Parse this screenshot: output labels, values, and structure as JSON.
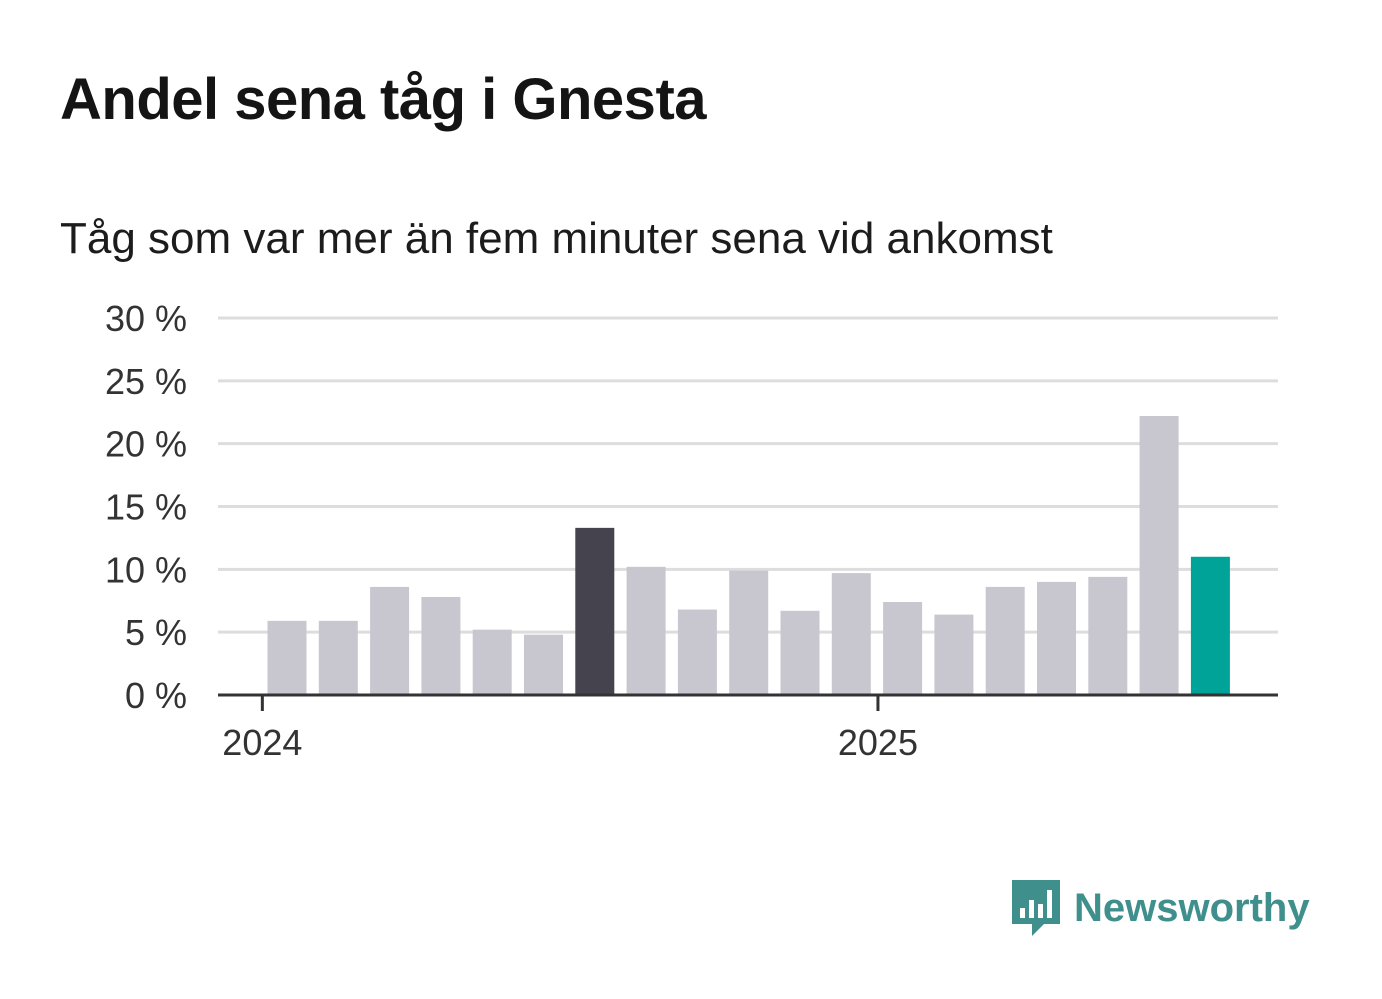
{
  "chart_data": {
    "type": "bar",
    "title": "Andel sena tåg i Gnesta",
    "subtitle": "Tåg som var mer än fem minuter sena vid ankomst",
    "ylim": [
      0,
      30
    ],
    "y_ticks": [
      "0 %",
      "5 %",
      "10 %",
      "15 %",
      "20 %",
      "25 %",
      "30 %"
    ],
    "x_tick_labels": [
      "2024",
      "2025"
    ],
    "grid": true,
    "values": [
      5.9,
      5.9,
      8.6,
      7.8,
      5.2,
      4.8,
      13.3,
      10.2,
      6.8,
      9.9,
      6.7,
      9.7,
      7.4,
      6.4,
      8.6,
      9.0,
      9.4,
      22.2,
      11.0
    ],
    "colors": {
      "default": "#c8c7d0",
      "highlight_dark": "#44434e",
      "highlight_latest": "#00a398",
      "grid": "#dddddd",
      "axis": "#333333"
    },
    "highlight_dark_index": 6,
    "highlight_latest_index": 18
  },
  "brand": {
    "name": "Newsworthy",
    "icon": "bar-chart-speech-bubble-icon",
    "color": "#3f8f8c"
  }
}
